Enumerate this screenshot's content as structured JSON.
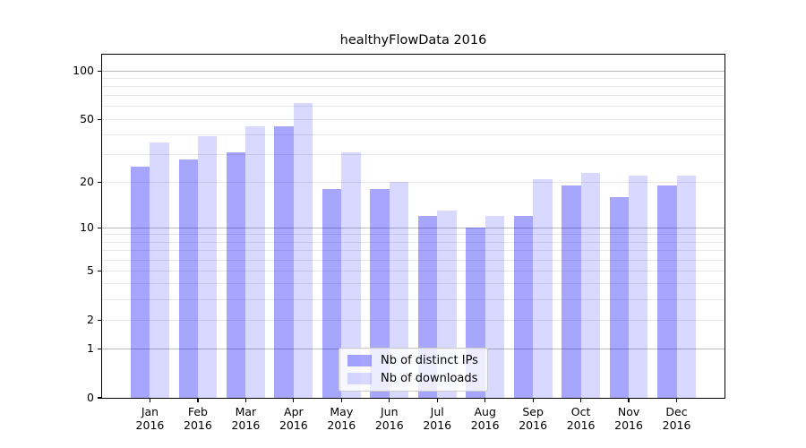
{
  "chart_data": {
    "type": "bar",
    "title": "healthyFlowData 2016",
    "categories": [
      "Jan",
      "Feb",
      "Mar",
      "Apr",
      "May",
      "Jun",
      "Jul",
      "Aug",
      "Sep",
      "Oct",
      "Nov",
      "Dec"
    ],
    "category_year": "2016",
    "series": [
      {
        "name": "Nb of distinct IPs",
        "color": "#0000ff",
        "alpha": 0.35,
        "values": [
          25,
          28,
          31,
          45,
          18,
          18,
          12,
          10,
          12,
          19,
          16,
          19
        ]
      },
      {
        "name": "Nb of downloads",
        "color": "#0000ff",
        "alpha": 0.15,
        "values": [
          36,
          39,
          45,
          63,
          31,
          20,
          13,
          12,
          21,
          23,
          22,
          22
        ]
      }
    ],
    "yscale": "log10(value+1)",
    "ylim": [
      0,
      126
    ],
    "yticks": [
      100,
      50,
      20,
      10,
      5,
      2,
      1,
      0
    ],
    "major_gridlines": [
      1,
      10,
      100
    ],
    "minor_gridlines": [
      2,
      3,
      4,
      5,
      6,
      7,
      8,
      9,
      20,
      30,
      40,
      50,
      60,
      70,
      80,
      90
    ],
    "grid": true,
    "legend_position": "lower center",
    "bar_group_width": 0.8
  }
}
